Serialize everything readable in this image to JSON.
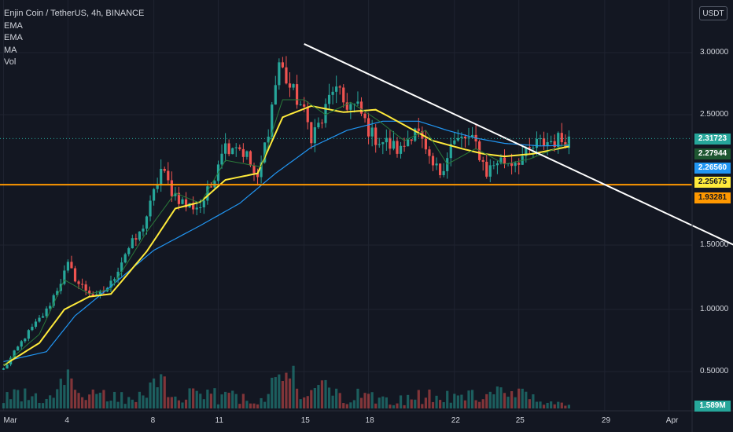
{
  "header": {
    "title": "Enjin Coin / TetherUS, 4h, BINANCE",
    "indicators": [
      "EMA",
      "EMA",
      "MA",
      "Vol"
    ]
  },
  "currency": "USDT",
  "price_badges": [
    {
      "label": "2.31723",
      "value": 2.31723,
      "bg": "#26a69a",
      "fg": "#ffffff"
    },
    {
      "label": "2.27944",
      "value": 2.27944,
      "bg": "#1e5631",
      "fg": "#ffffff"
    },
    {
      "label": "2.26560",
      "value": 2.2656,
      "bg": "#2196f3",
      "fg": "#ffffff"
    },
    {
      "label": "2.25675",
      "value": 2.25675,
      "bg": "#ffeb3b",
      "fg": "#131722"
    },
    {
      "label": "1.93281",
      "value": 1.93281,
      "bg": "#ff9800",
      "fg": "#131722"
    }
  ],
  "volume_badge": {
    "label": "1.589M",
    "bg": "#26a69a"
  },
  "chart_data": {
    "type": "candlestick",
    "y_ticks": [
      "3.00000",
      "2.50000",
      "1.50000",
      "1.00000",
      "0.50000"
    ],
    "y_tick_values": [
      3.0,
      2.5,
      1.5,
      1.0,
      0.5
    ],
    "ylim": [
      0.4,
      3.3
    ],
    "x_ticks": [
      "Mar",
      "4",
      "8",
      "11",
      "15",
      "18",
      "22",
      "25",
      "29",
      "Apr"
    ],
    "x_tick_index": [
      0,
      18,
      42,
      60,
      84,
      102,
      126,
      144,
      168,
      186
    ],
    "grid": true,
    "colors": {
      "up": "#26a69a",
      "down": "#ef5350",
      "ema_fast": "#2a7a3a",
      "ema_slow": "#ffeb3b",
      "ma": "#2196f3",
      "trendline": "#ffffff",
      "support": "#ff9800"
    },
    "anchors": [
      [
        0,
        0.52
      ],
      [
        6,
        0.78
      ],
      [
        12,
        0.99
      ],
      [
        16,
        1.22
      ],
      [
        18,
        1.34
      ],
      [
        21,
        1.2
      ],
      [
        26,
        1.09
      ],
      [
        30,
        1.2
      ],
      [
        34,
        1.44
      ],
      [
        38,
        1.58
      ],
      [
        41,
        1.8
      ],
      [
        44,
        2.08
      ],
      [
        47,
        1.92
      ],
      [
        51,
        1.8
      ],
      [
        55,
        1.8
      ],
      [
        58,
        1.95
      ],
      [
        61,
        2.25
      ],
      [
        65,
        2.28
      ],
      [
        68,
        2.18
      ],
      [
        71,
        1.98
      ],
      [
        74,
        2.4
      ],
      [
        77,
        2.92
      ],
      [
        80,
        2.72
      ],
      [
        83,
        2.58
      ],
      [
        86,
        2.35
      ],
      [
        89,
        2.45
      ],
      [
        92,
        2.72
      ],
      [
        95,
        2.6
      ],
      [
        99,
        2.55
      ],
      [
        103,
        2.34
      ],
      [
        107,
        2.28
      ],
      [
        111,
        2.22
      ],
      [
        115,
        2.42
      ],
      [
        119,
        2.12
      ],
      [
        122,
        2.06
      ],
      [
        125,
        2.27
      ],
      [
        129,
        2.32
      ],
      [
        132,
        2.27
      ],
      [
        135,
        2.06
      ],
      [
        138,
        2.15
      ],
      [
        142,
        2.14
      ],
      [
        146,
        2.19
      ],
      [
        149,
        2.27
      ],
      [
        153,
        2.3
      ],
      [
        158,
        2.317
      ]
    ],
    "ema_fast_anchors": [
      [
        0,
        0.55
      ],
      [
        10,
        0.8
      ],
      [
        17,
        1.23
      ],
      [
        24,
        1.12
      ],
      [
        30,
        1.16
      ],
      [
        40,
        1.6
      ],
      [
        48,
        1.9
      ],
      [
        55,
        1.82
      ],
      [
        62,
        2.15
      ],
      [
        72,
        2.1
      ],
      [
        78,
        2.62
      ],
      [
        84,
        2.62
      ],
      [
        90,
        2.5
      ],
      [
        97,
        2.6
      ],
      [
        105,
        2.45
      ],
      [
        112,
        2.3
      ],
      [
        118,
        2.38
      ],
      [
        124,
        2.12
      ],
      [
        132,
        2.24
      ],
      [
        140,
        2.12
      ],
      [
        147,
        2.16
      ],
      [
        158,
        2.28
      ]
    ],
    "ema_slow_anchors": [
      [
        0,
        0.55
      ],
      [
        10,
        0.73
      ],
      [
        17,
        1.0
      ],
      [
        24,
        1.1
      ],
      [
        30,
        1.12
      ],
      [
        40,
        1.45
      ],
      [
        48,
        1.78
      ],
      [
        55,
        1.83
      ],
      [
        62,
        2.0
      ],
      [
        71,
        2.05
      ],
      [
        78,
        2.48
      ],
      [
        86,
        2.57
      ],
      [
        95,
        2.52
      ],
      [
        104,
        2.54
      ],
      [
        112,
        2.42
      ],
      [
        120,
        2.3
      ],
      [
        128,
        2.24
      ],
      [
        134,
        2.2
      ],
      [
        140,
        2.18
      ],
      [
        148,
        2.2
      ],
      [
        158,
        2.256
      ]
    ],
    "ma_anchors": [
      [
        0,
        0.58
      ],
      [
        12,
        0.66
      ],
      [
        20,
        0.95
      ],
      [
        30,
        1.18
      ],
      [
        42,
        1.46
      ],
      [
        55,
        1.65
      ],
      [
        66,
        1.82
      ],
      [
        76,
        2.05
      ],
      [
        86,
        2.25
      ],
      [
        96,
        2.38
      ],
      [
        106,
        2.45
      ],
      [
        116,
        2.45
      ],
      [
        124,
        2.38
      ],
      [
        132,
        2.32
      ],
      [
        140,
        2.28
      ],
      [
        150,
        2.26
      ],
      [
        158,
        2.265
      ]
    ],
    "volume_scale": 1.0,
    "trendline": {
      "from": [
        84,
        3.07
      ],
      "to": [
        208,
        1.45
      ]
    },
    "support_level": 1.93281
  }
}
